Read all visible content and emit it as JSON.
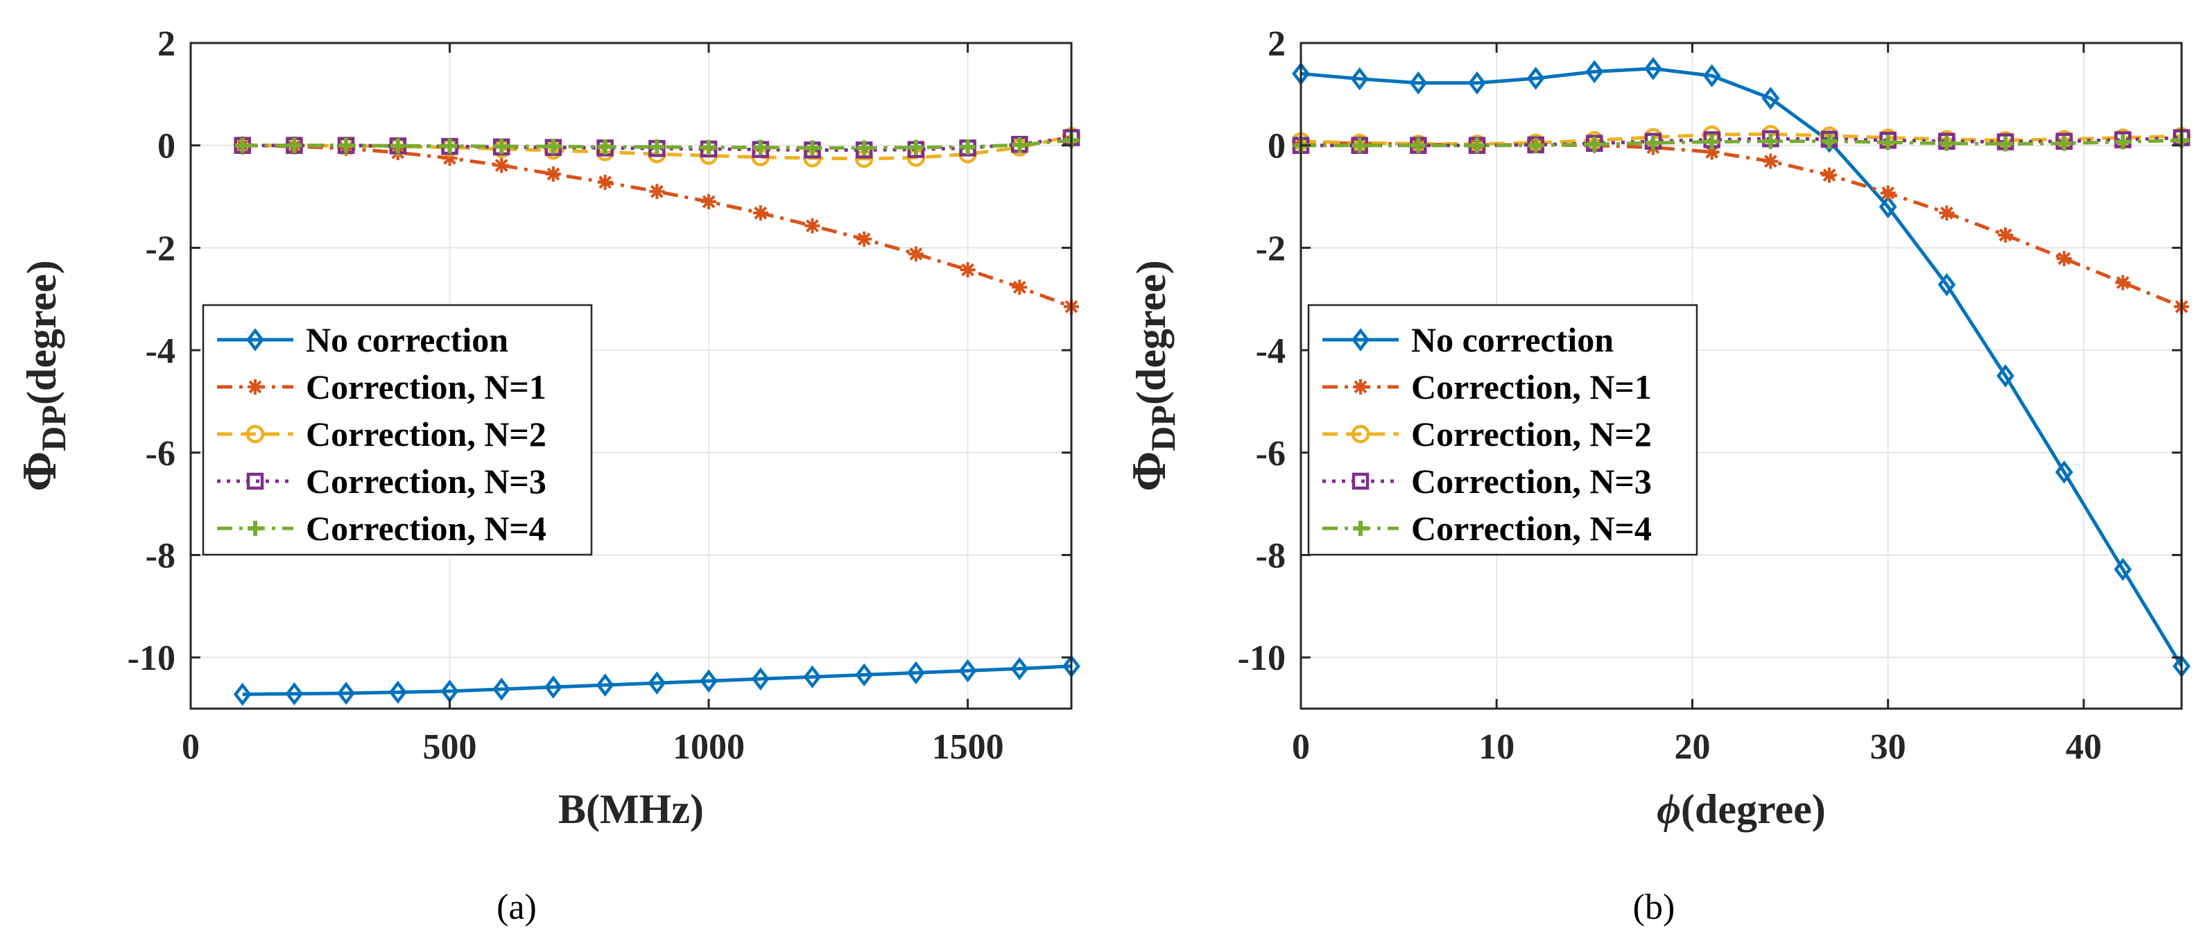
{
  "colors": {
    "no_correction": "#0072BD",
    "n1": "#D95319",
    "n2": "#EDB120",
    "n3": "#7E2F8E",
    "n4": "#77AC30",
    "grid": "#e6e6e6",
    "axis": "#262626"
  },
  "chart_data": [
    {
      "type": "line",
      "sublabel": "(a)",
      "xlabel": "B(MHz)",
      "ylabel": {
        "main": "Φ",
        "sub": "DP",
        "rest": "(degree)"
      },
      "xlim": [
        0,
        1700
      ],
      "ylim": [
        -11,
        2
      ],
      "xticks": [
        0,
        500,
        1000,
        1500
      ],
      "yticks": [
        2,
        0,
        -2,
        -4,
        -6,
        -8,
        -10
      ],
      "grid": true,
      "legend_position": "middle-left",
      "x": [
        100,
        200,
        300,
        400,
        500,
        600,
        700,
        800,
        900,
        1000,
        1100,
        1200,
        1300,
        1400,
        1500,
        1600,
        1700
      ],
      "series": [
        {
          "name": "No correction",
          "style": "solid",
          "marker": "diamond",
          "color_key": "no_correction",
          "values": [
            -10.72,
            -10.71,
            -10.7,
            -10.68,
            -10.66,
            -10.62,
            -10.58,
            -10.54,
            -10.5,
            -10.46,
            -10.42,
            -10.38,
            -10.34,
            -10.3,
            -10.26,
            -10.22,
            -10.17
          ]
        },
        {
          "name": "Correction, N=1",
          "style": "dashdot",
          "marker": "asterisk",
          "color_key": "n1",
          "values": [
            0.0,
            -0.02,
            -0.06,
            -0.14,
            -0.25,
            -0.39,
            -0.56,
            -0.72,
            -0.9,
            -1.1,
            -1.32,
            -1.57,
            -1.83,
            -2.12,
            -2.43,
            -2.77,
            -3.15
          ]
        },
        {
          "name": "Correction, N=2",
          "style": "dashed",
          "marker": "circle",
          "color_key": "n2",
          "values": [
            0.0,
            0.0,
            -0.01,
            -0.02,
            -0.04,
            -0.07,
            -0.1,
            -0.13,
            -0.17,
            -0.2,
            -0.23,
            -0.25,
            -0.26,
            -0.24,
            -0.17,
            -0.04,
            0.18
          ]
        },
        {
          "name": "Correction, N=3",
          "style": "dotted",
          "marker": "square",
          "color_key": "n3",
          "values": [
            0.0,
            0.0,
            0.0,
            -0.01,
            -0.02,
            -0.03,
            -0.04,
            -0.05,
            -0.06,
            -0.07,
            -0.08,
            -0.09,
            -0.09,
            -0.08,
            -0.05,
            0.02,
            0.15
          ]
        },
        {
          "name": "Correction, N=4",
          "style": "dashdot",
          "marker": "plus",
          "color_key": "n4",
          "values": [
            0.0,
            0.0,
            0.0,
            -0.01,
            -0.01,
            -0.02,
            -0.02,
            -0.03,
            -0.03,
            -0.04,
            -0.04,
            -0.05,
            -0.05,
            -0.04,
            -0.03,
            0.01,
            0.1
          ]
        }
      ]
    },
    {
      "type": "line",
      "sublabel": "(b)",
      "xlabel": {
        "symbol": "ϕ",
        "rest": "(degree)"
      },
      "ylabel": {
        "main": "Φ",
        "sub": "DP",
        "rest": "(degree)"
      },
      "xlim": [
        0,
        45
      ],
      "ylim": [
        -11,
        2
      ],
      "xticks": [
        0,
        10,
        20,
        30,
        40
      ],
      "yticks": [
        2,
        0,
        -2,
        -4,
        -6,
        -8,
        -10
      ],
      "grid": true,
      "legend_position": "middle-left",
      "x": [
        0,
        3,
        6,
        9,
        12,
        15,
        18,
        21,
        24,
        27,
        30,
        33,
        36,
        39,
        42,
        45
      ],
      "series": [
        {
          "name": "No correction",
          "style": "solid",
          "marker": "diamond",
          "color_key": "no_correction",
          "values": [
            1.4,
            1.3,
            1.22,
            1.22,
            1.31,
            1.44,
            1.5,
            1.36,
            0.92,
            0.08,
            -1.2,
            -2.72,
            -4.5,
            -6.38,
            -8.28,
            -10.17
          ]
        },
        {
          "name": "Correction, N=1",
          "style": "dashdot",
          "marker": "asterisk",
          "color_key": "n1",
          "values": [
            0.05,
            0.04,
            0.02,
            0.01,
            0.01,
            0.0,
            -0.04,
            -0.13,
            -0.31,
            -0.58,
            -0.93,
            -1.32,
            -1.75,
            -2.21,
            -2.68,
            -3.15
          ]
        },
        {
          "name": "Correction, N=2",
          "style": "dashed",
          "marker": "circle",
          "color_key": "n2",
          "values": [
            0.08,
            0.05,
            0.03,
            0.03,
            0.05,
            0.1,
            0.16,
            0.21,
            0.22,
            0.19,
            0.15,
            0.12,
            0.1,
            0.12,
            0.15,
            0.18
          ]
        },
        {
          "name": "Correction, N=3",
          "style": "dotted",
          "marker": "square",
          "color_key": "n3",
          "values": [
            0.0,
            0.0,
            0.0,
            0.0,
            0.01,
            0.04,
            0.08,
            0.11,
            0.13,
            0.12,
            0.1,
            0.08,
            0.07,
            0.08,
            0.11,
            0.15
          ]
        },
        {
          "name": "Correction, N=4",
          "style": "dashdot",
          "marker": "plus",
          "color_key": "n4",
          "values": [
            0.0,
            0.0,
            0.0,
            0.0,
            0.0,
            0.02,
            0.05,
            0.07,
            0.08,
            0.08,
            0.06,
            0.04,
            0.03,
            0.04,
            0.07,
            0.1
          ]
        }
      ]
    }
  ]
}
